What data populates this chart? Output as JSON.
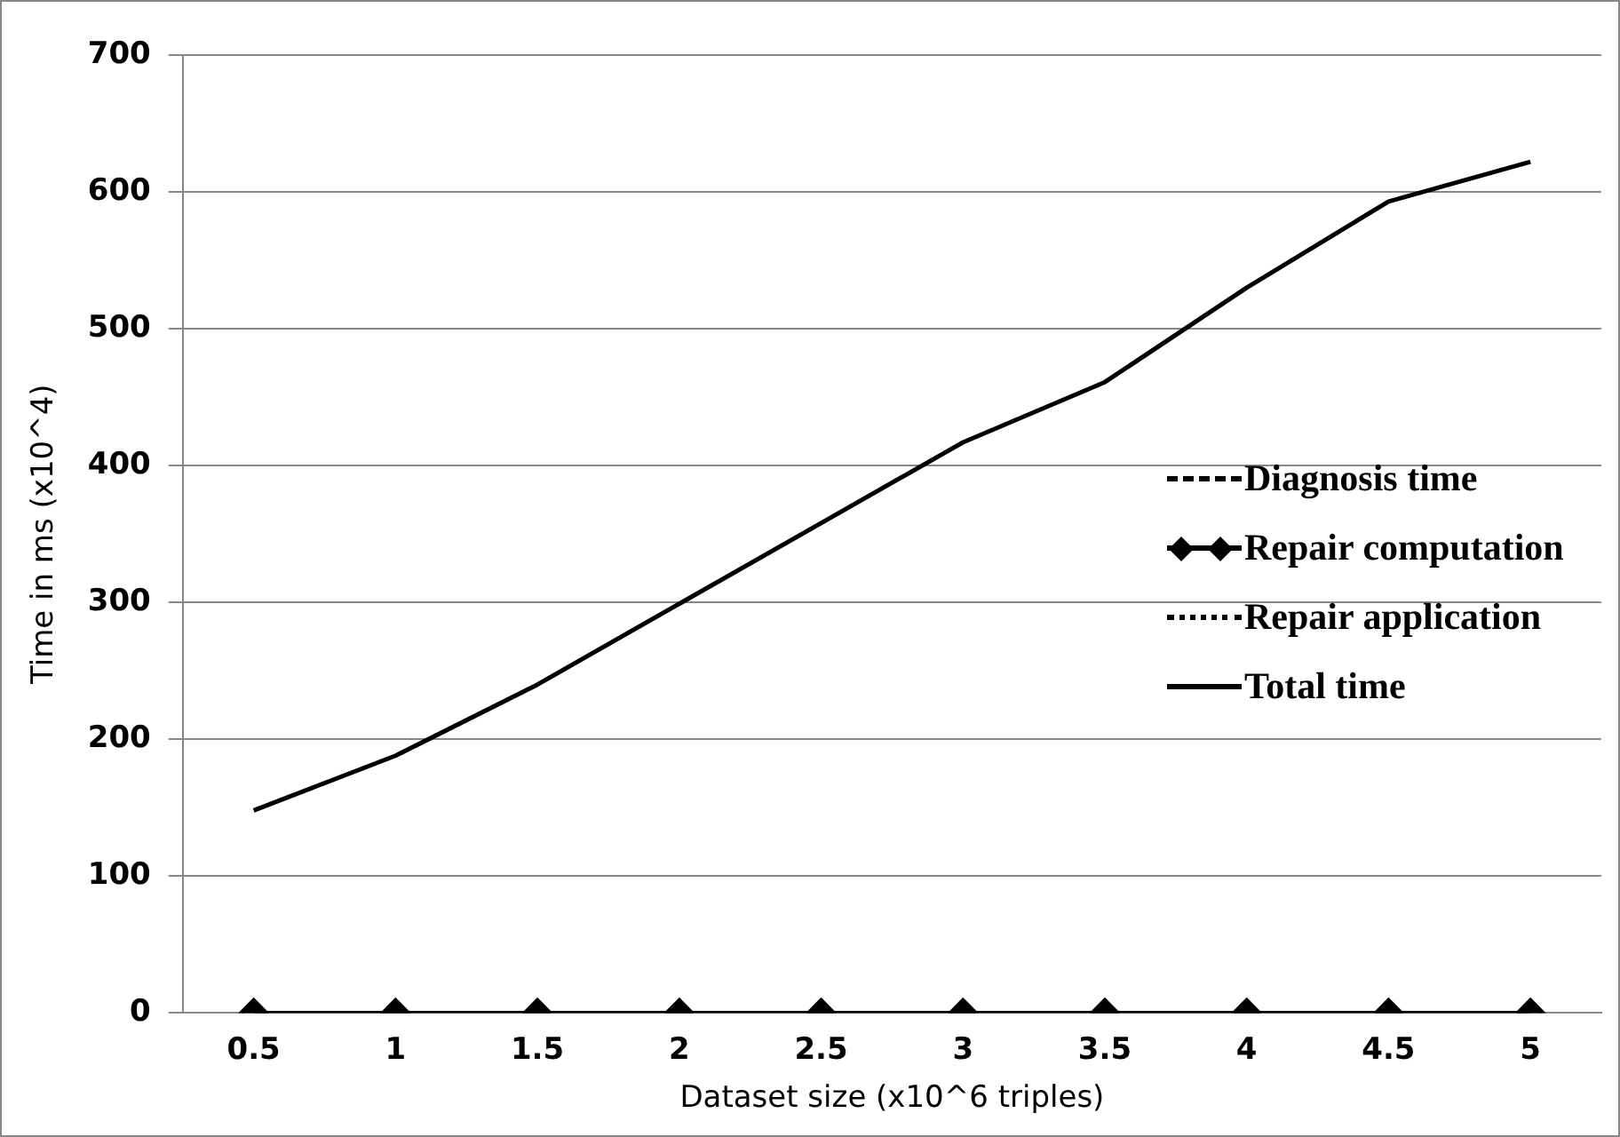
{
  "chart_data": {
    "type": "line",
    "xlabel": "Dataset size (x10^6 triples)",
    "ylabel": "Time in ms (x10^4)",
    "categories": [
      "0.5",
      "1",
      "1.5",
      "2",
      "2.5",
      "3",
      "3.5",
      "4",
      "4.5",
      "5"
    ],
    "ylim": [
      0,
      700
    ],
    "yticks": [
      0,
      100,
      200,
      300,
      400,
      500,
      600,
      700
    ],
    "grid": "y",
    "legend": "right",
    "series": [
      {
        "name": "Diagnosis time",
        "color": "#000000",
        "line_style": "dashed",
        "marker": "none",
        "values": [
          null,
          null,
          null,
          null,
          null,
          null,
          null,
          null,
          null,
          null
        ]
      },
      {
        "name": "Repair computation",
        "color": "#000000",
        "line_style": "solid",
        "marker": "diamond",
        "values": [
          0,
          0,
          0,
          0,
          0,
          0,
          0,
          0,
          0,
          0
        ]
      },
      {
        "name": "Repair application",
        "color": "#000000",
        "line_style": "dotted",
        "marker": "none",
        "values": [
          null,
          null,
          null,
          null,
          null,
          null,
          null,
          null,
          null,
          null
        ]
      },
      {
        "name": "Total time",
        "color": "#000000",
        "line_style": "solid",
        "marker": "none",
        "values": [
          148,
          188,
          240,
          299,
          358,
          417,
          461,
          530,
          593,
          622
        ]
      }
    ]
  }
}
